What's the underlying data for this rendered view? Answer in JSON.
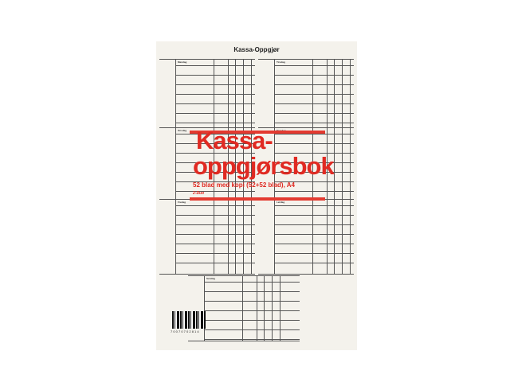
{
  "title": "Kassa-Oppgjør",
  "headline": [
    "Kassa-",
    "oppgjørsbok"
  ],
  "subtitle": "52 blad med kopi (52+52 blad), A4",
  "brand": "2-Duo",
  "days": [
    "Mandag",
    "Tirsdag",
    "Onsdag",
    "Torsdag",
    "Fredag",
    "Lørdag",
    "Søndag"
  ],
  "barcode": "7 0 0 7 0 7 0 2 8 1 4",
  "colors": {
    "paper": "#f4f2ec",
    "accent": "#e02a22"
  }
}
